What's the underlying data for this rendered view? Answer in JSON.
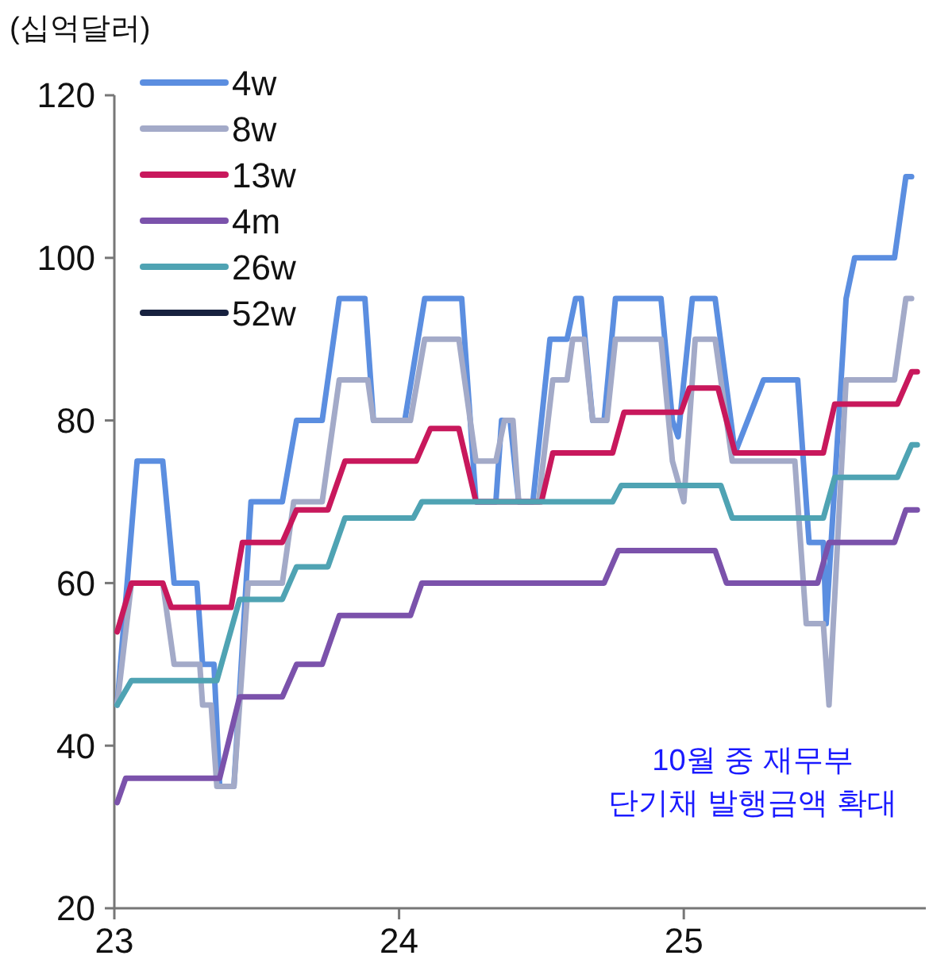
{
  "chart_data": {
    "type": "line",
    "ylabel": "(십억달러)",
    "xlim": [
      23,
      25.85
    ],
    "xticks": [
      23,
      24,
      25
    ],
    "ylim": [
      20,
      120
    ],
    "yticks": [
      20,
      40,
      60,
      80,
      100,
      120
    ],
    "grid": false,
    "legend": "top left",
    "marker": "none",
    "line_style": "solid",
    "annotations": [
      "10월 중 재무부\n단기채 발행금액 확대"
    ],
    "series": [
      {
        "name": "4w",
        "color": "#5b8ee0",
        "x": [
          23.01,
          23.08,
          23.17,
          23.21,
          23.29,
          23.31,
          23.35,
          23.37,
          23.42,
          23.48,
          23.59,
          23.64,
          23.73,
          23.79,
          23.88,
          23.91,
          24.02,
          24.09,
          24.22,
          24.27,
          24.34,
          24.36,
          24.39,
          24.42,
          24.47,
          24.53,
          24.59,
          24.62,
          24.64,
          24.68,
          24.72,
          24.76,
          24.92,
          24.96,
          24.98,
          25.03,
          25.11,
          25.18,
          25.28,
          25.4,
          25.44,
          25.49,
          25.5,
          25.57,
          25.6,
          25.74,
          25.78,
          25.8
        ],
        "values": [
          45,
          75,
          75,
          60,
          60,
          50,
          50,
          35,
          35,
          70,
          70,
          80,
          80,
          95,
          95,
          80,
          80,
          95,
          95,
          70,
          70,
          80,
          80,
          70,
          70,
          90,
          90,
          95,
          95,
          80,
          80,
          95,
          95,
          80,
          78,
          95,
          95,
          76,
          85,
          85,
          65,
          65,
          55,
          95,
          100,
          100,
          110,
          110
        ]
      },
      {
        "name": "8w",
        "color": "#a3aac8",
        "x": [
          23.01,
          23.06,
          23.17,
          23.21,
          23.3,
          23.31,
          23.34,
          23.36,
          23.42,
          23.47,
          23.59,
          23.63,
          23.73,
          23.79,
          23.89,
          23.91,
          24.04,
          24.09,
          24.21,
          24.27,
          24.34,
          24.37,
          24.4,
          24.42,
          24.49,
          24.54,
          24.59,
          24.61,
          24.65,
          24.68,
          24.73,
          24.76,
          24.92,
          24.96,
          25.0,
          25.04,
          25.11,
          25.17,
          25.39,
          25.43,
          25.49,
          25.51,
          25.57,
          25.74,
          25.78,
          25.8
        ],
        "values": [
          45,
          60,
          60,
          50,
          50,
          45,
          45,
          35,
          35,
          60,
          60,
          70,
          70,
          85,
          85,
          80,
          80,
          90,
          90,
          75,
          75,
          80,
          80,
          70,
          70,
          85,
          85,
          90,
          90,
          80,
          80,
          90,
          90,
          75,
          70,
          90,
          90,
          75,
          75,
          55,
          55,
          45,
          85,
          85,
          95,
          95
        ]
      },
      {
        "name": "13w",
        "color": "#c8185c",
        "x": [
          23.01,
          23.06,
          23.17,
          23.2,
          23.41,
          23.45,
          23.59,
          23.64,
          23.75,
          23.81,
          24.06,
          24.11,
          24.21,
          24.27,
          24.5,
          24.54,
          24.75,
          24.79,
          24.99,
          25.02,
          25.12,
          25.18,
          25.49,
          25.53,
          25.75,
          25.8,
          25.82
        ],
        "values": [
          54,
          60,
          60,
          57,
          57,
          65,
          65,
          69,
          69,
          75,
          75,
          79,
          79,
          70,
          70,
          76,
          76,
          81,
          81,
          84,
          84,
          76,
          76,
          82,
          82,
          86,
          86
        ]
      },
      {
        "name": "4m",
        "color": "#7b52ab",
        "x": [
          23.01,
          23.04,
          23.37,
          23.44,
          23.59,
          23.64,
          23.73,
          23.79,
          24.04,
          24.08,
          24.72,
          24.77,
          25.11,
          25.15,
          25.47,
          25.51,
          25.74,
          25.78,
          25.82
        ],
        "values": [
          33,
          36,
          36,
          46,
          46,
          50,
          50,
          56,
          56,
          60,
          60,
          64,
          64,
          60,
          60,
          65,
          65,
          69,
          69
        ]
      },
      {
        "name": "26w",
        "color": "#4fa3b3",
        "x": [
          23.01,
          23.06,
          23.36,
          23.44,
          23.59,
          23.64,
          23.75,
          23.81,
          24.05,
          24.08,
          24.75,
          24.78,
          25.13,
          25.17,
          25.49,
          25.53,
          25.75,
          25.8,
          25.82
        ],
        "values": [
          45,
          48,
          48,
          58,
          58,
          62,
          62,
          68,
          68,
          70,
          70,
          72,
          72,
          68,
          68,
          73,
          73,
          77,
          77
        ]
      },
      {
        "name": "52w",
        "color": "#17213f"
      }
    ]
  }
}
